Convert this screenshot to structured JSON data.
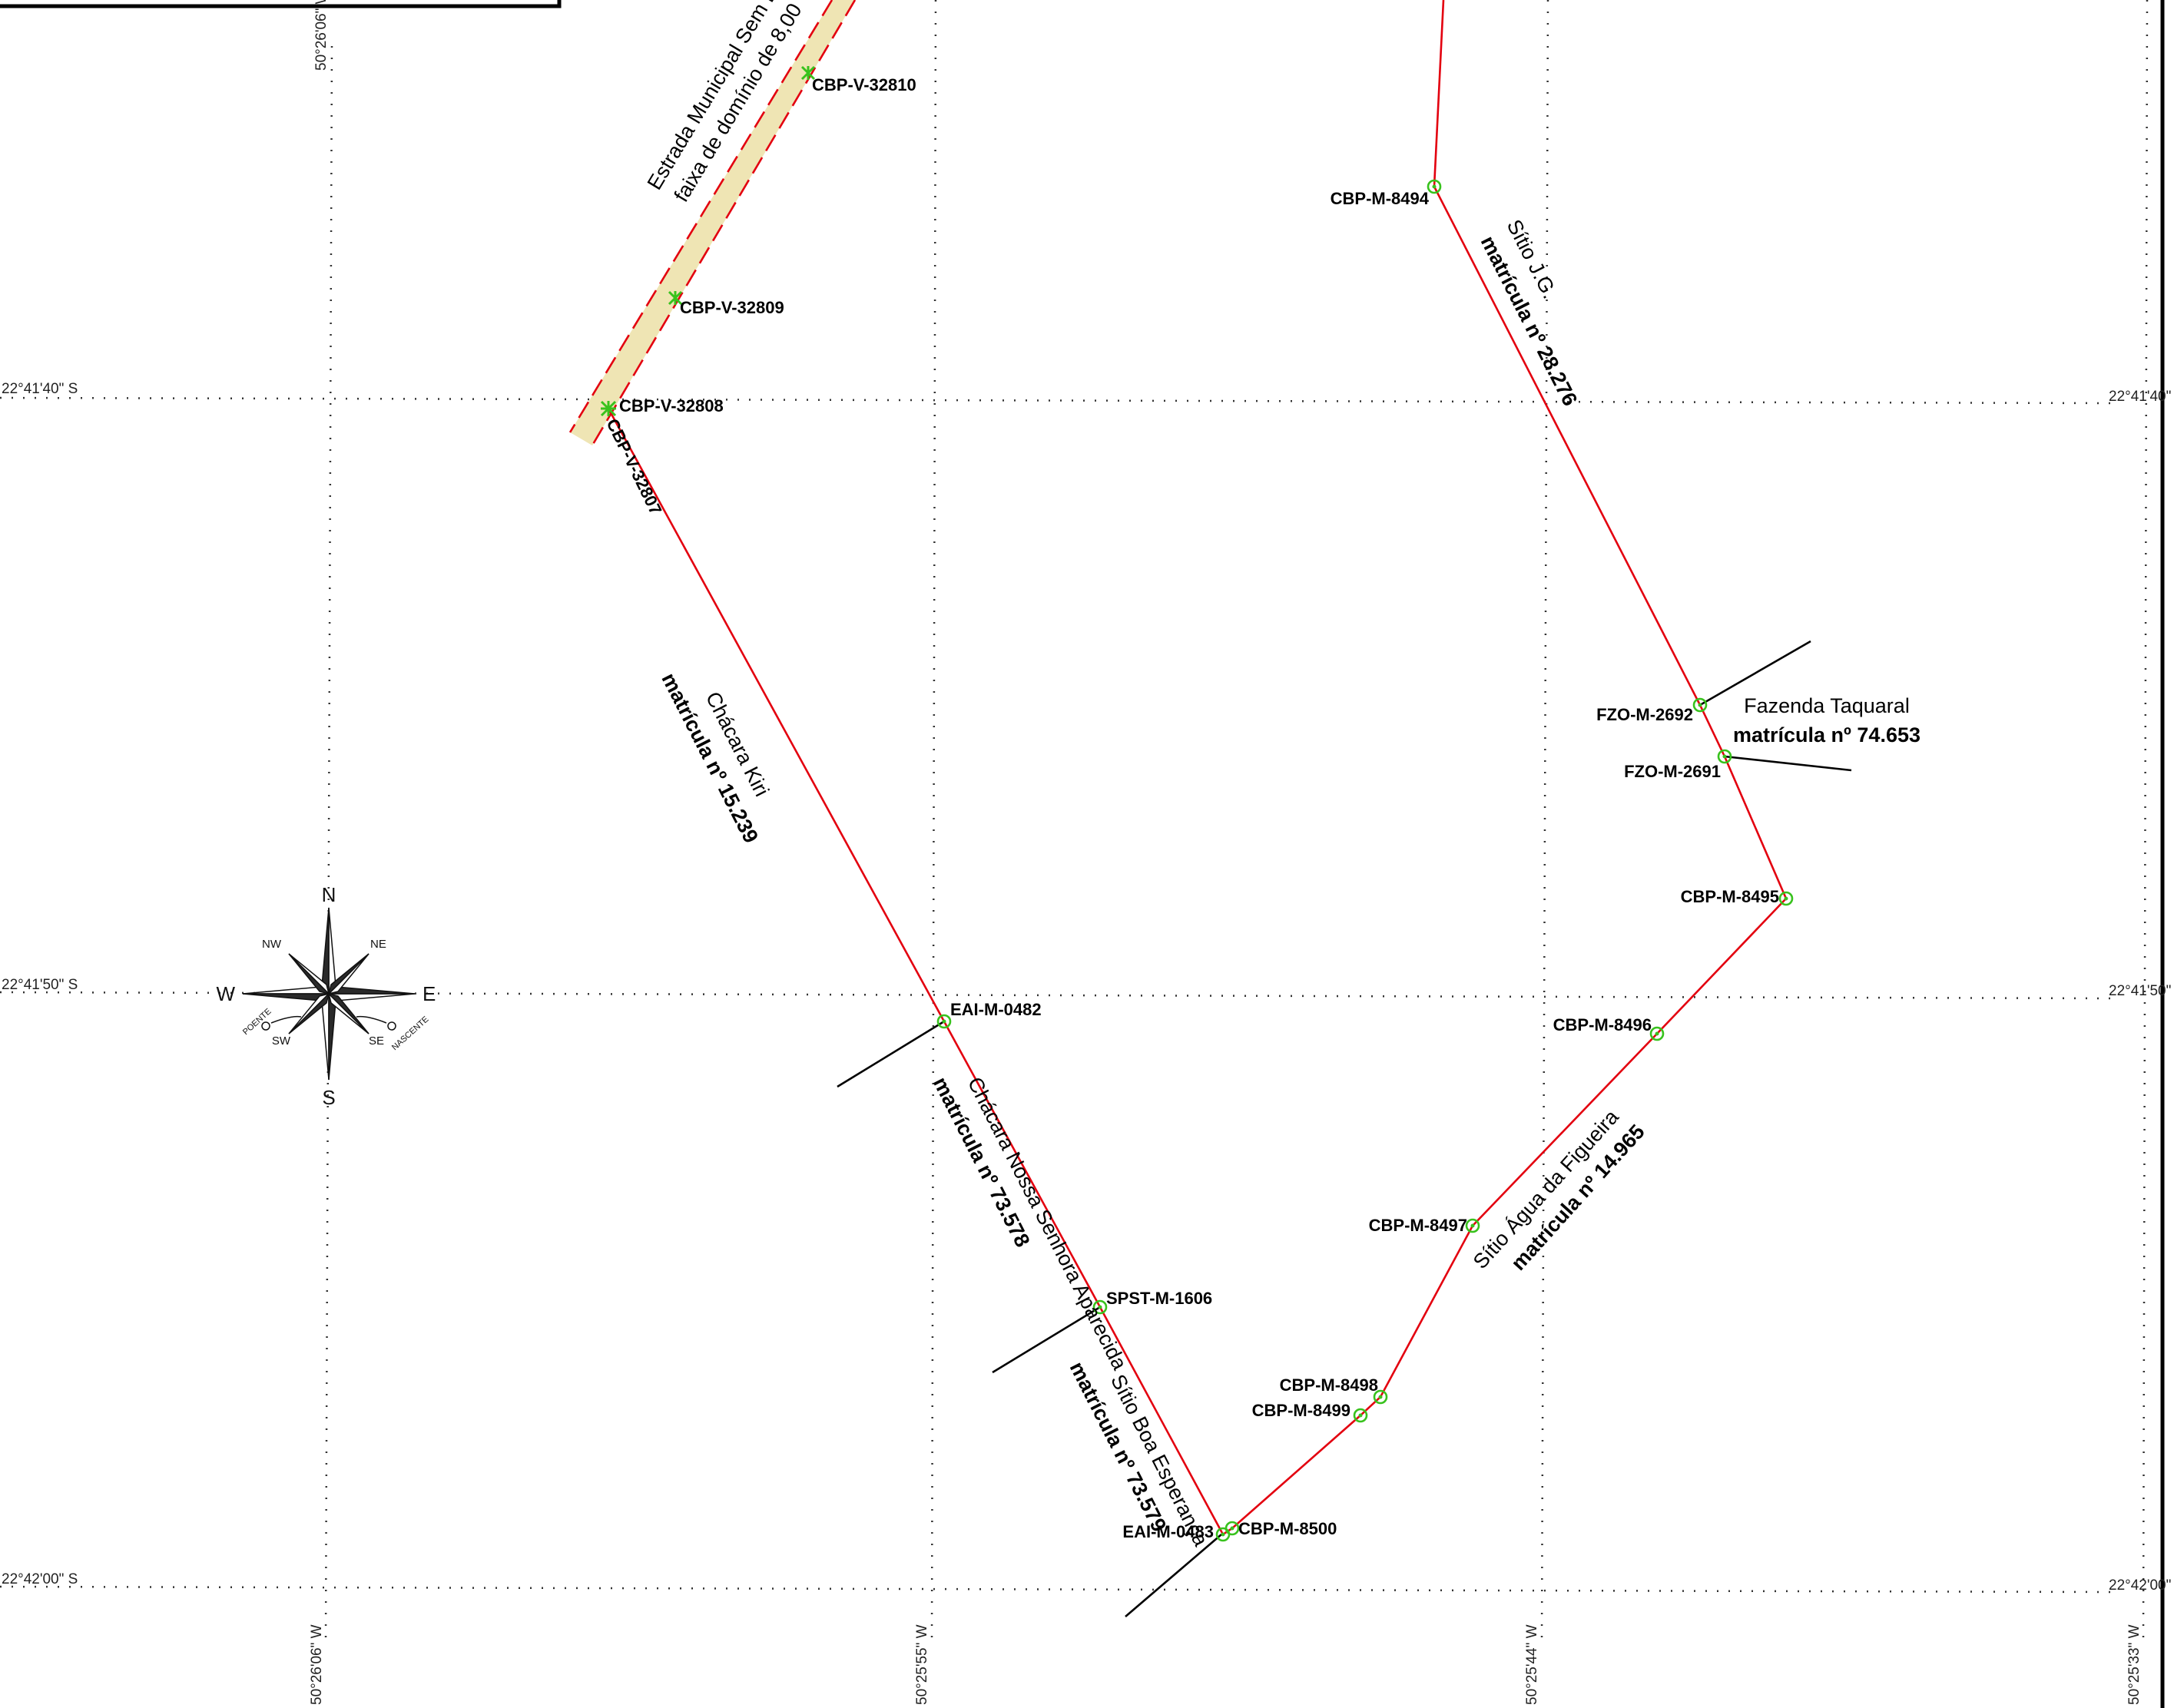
{
  "coordinates": {
    "lat_top": "22°41'40\" S",
    "lat_middle": "22°41'50\" S",
    "lat_bottom": "22°42'00\" S",
    "lon_1": "50°26'06\" W",
    "lon_2": "50°25'55\" W",
    "lon_3": "50°25'44\" W",
    "lon_4": "50°25'33\" W"
  },
  "road": {
    "name_line1": "Estrada Municipal Sem D",
    "name_line2": "faixa de domínio de 8,00",
    "color_fill": "#efe5b4",
    "color_edge": "#e3000f"
  },
  "vertices": {
    "v32810": "CBP-V-32810",
    "v32809": "CBP-V-32809",
    "v32808": "CBP-V-32808",
    "v32807": "CBP-V-32807",
    "eai0482": "EAI-M-0482",
    "spst1606": "SPST-M-1606",
    "eai0483": "EAI-M-0483",
    "cbp8500": "CBP-M-8500",
    "cbp8499": "CBP-M-8499",
    "cbp8498": "CBP-M-8498",
    "cbp8497": "CBP-M-8497",
    "cbp8496": "CBP-M-8496",
    "cbp8495": "CBP-M-8495",
    "fzo2691": "FZO-M-2691",
    "fzo2692": "FZO-M-2692",
    "cbp8494": "CBP-M-8494"
  },
  "parcels": {
    "kiri_name": "Chácara Kiri",
    "kiri_reg": "matrícula nº 15.239",
    "aparecida_name": "Chácara Nossa Senhora Aparecida",
    "aparecida_reg": "matrícula nº 73.578",
    "boa_name": "Sítio Boa Esperança",
    "boa_reg": "matrícula nº 73.579",
    "figueira_name": "Sítio Água da Figueira",
    "figueira_reg": "matrícula nº 14.965",
    "taquaral_name": "Fazenda Taquaral",
    "taquaral_reg": "matrícula nº 74.653",
    "jg_name": "Sítio J.G.",
    "jg_reg": "matrícula nº 28.276"
  },
  "compass": {
    "north": "N",
    "south": "S",
    "east": "E",
    "west": "W",
    "northwest": "NW",
    "northeast": "NE",
    "southwest": "SW",
    "southeast": "SE",
    "sunset": "POENTE",
    "sunrise": "NASCENTE"
  },
  "colors": {
    "boundary": "#e3000f",
    "vertex_marker": "#38c21d",
    "confrontation_line": "#000000"
  }
}
